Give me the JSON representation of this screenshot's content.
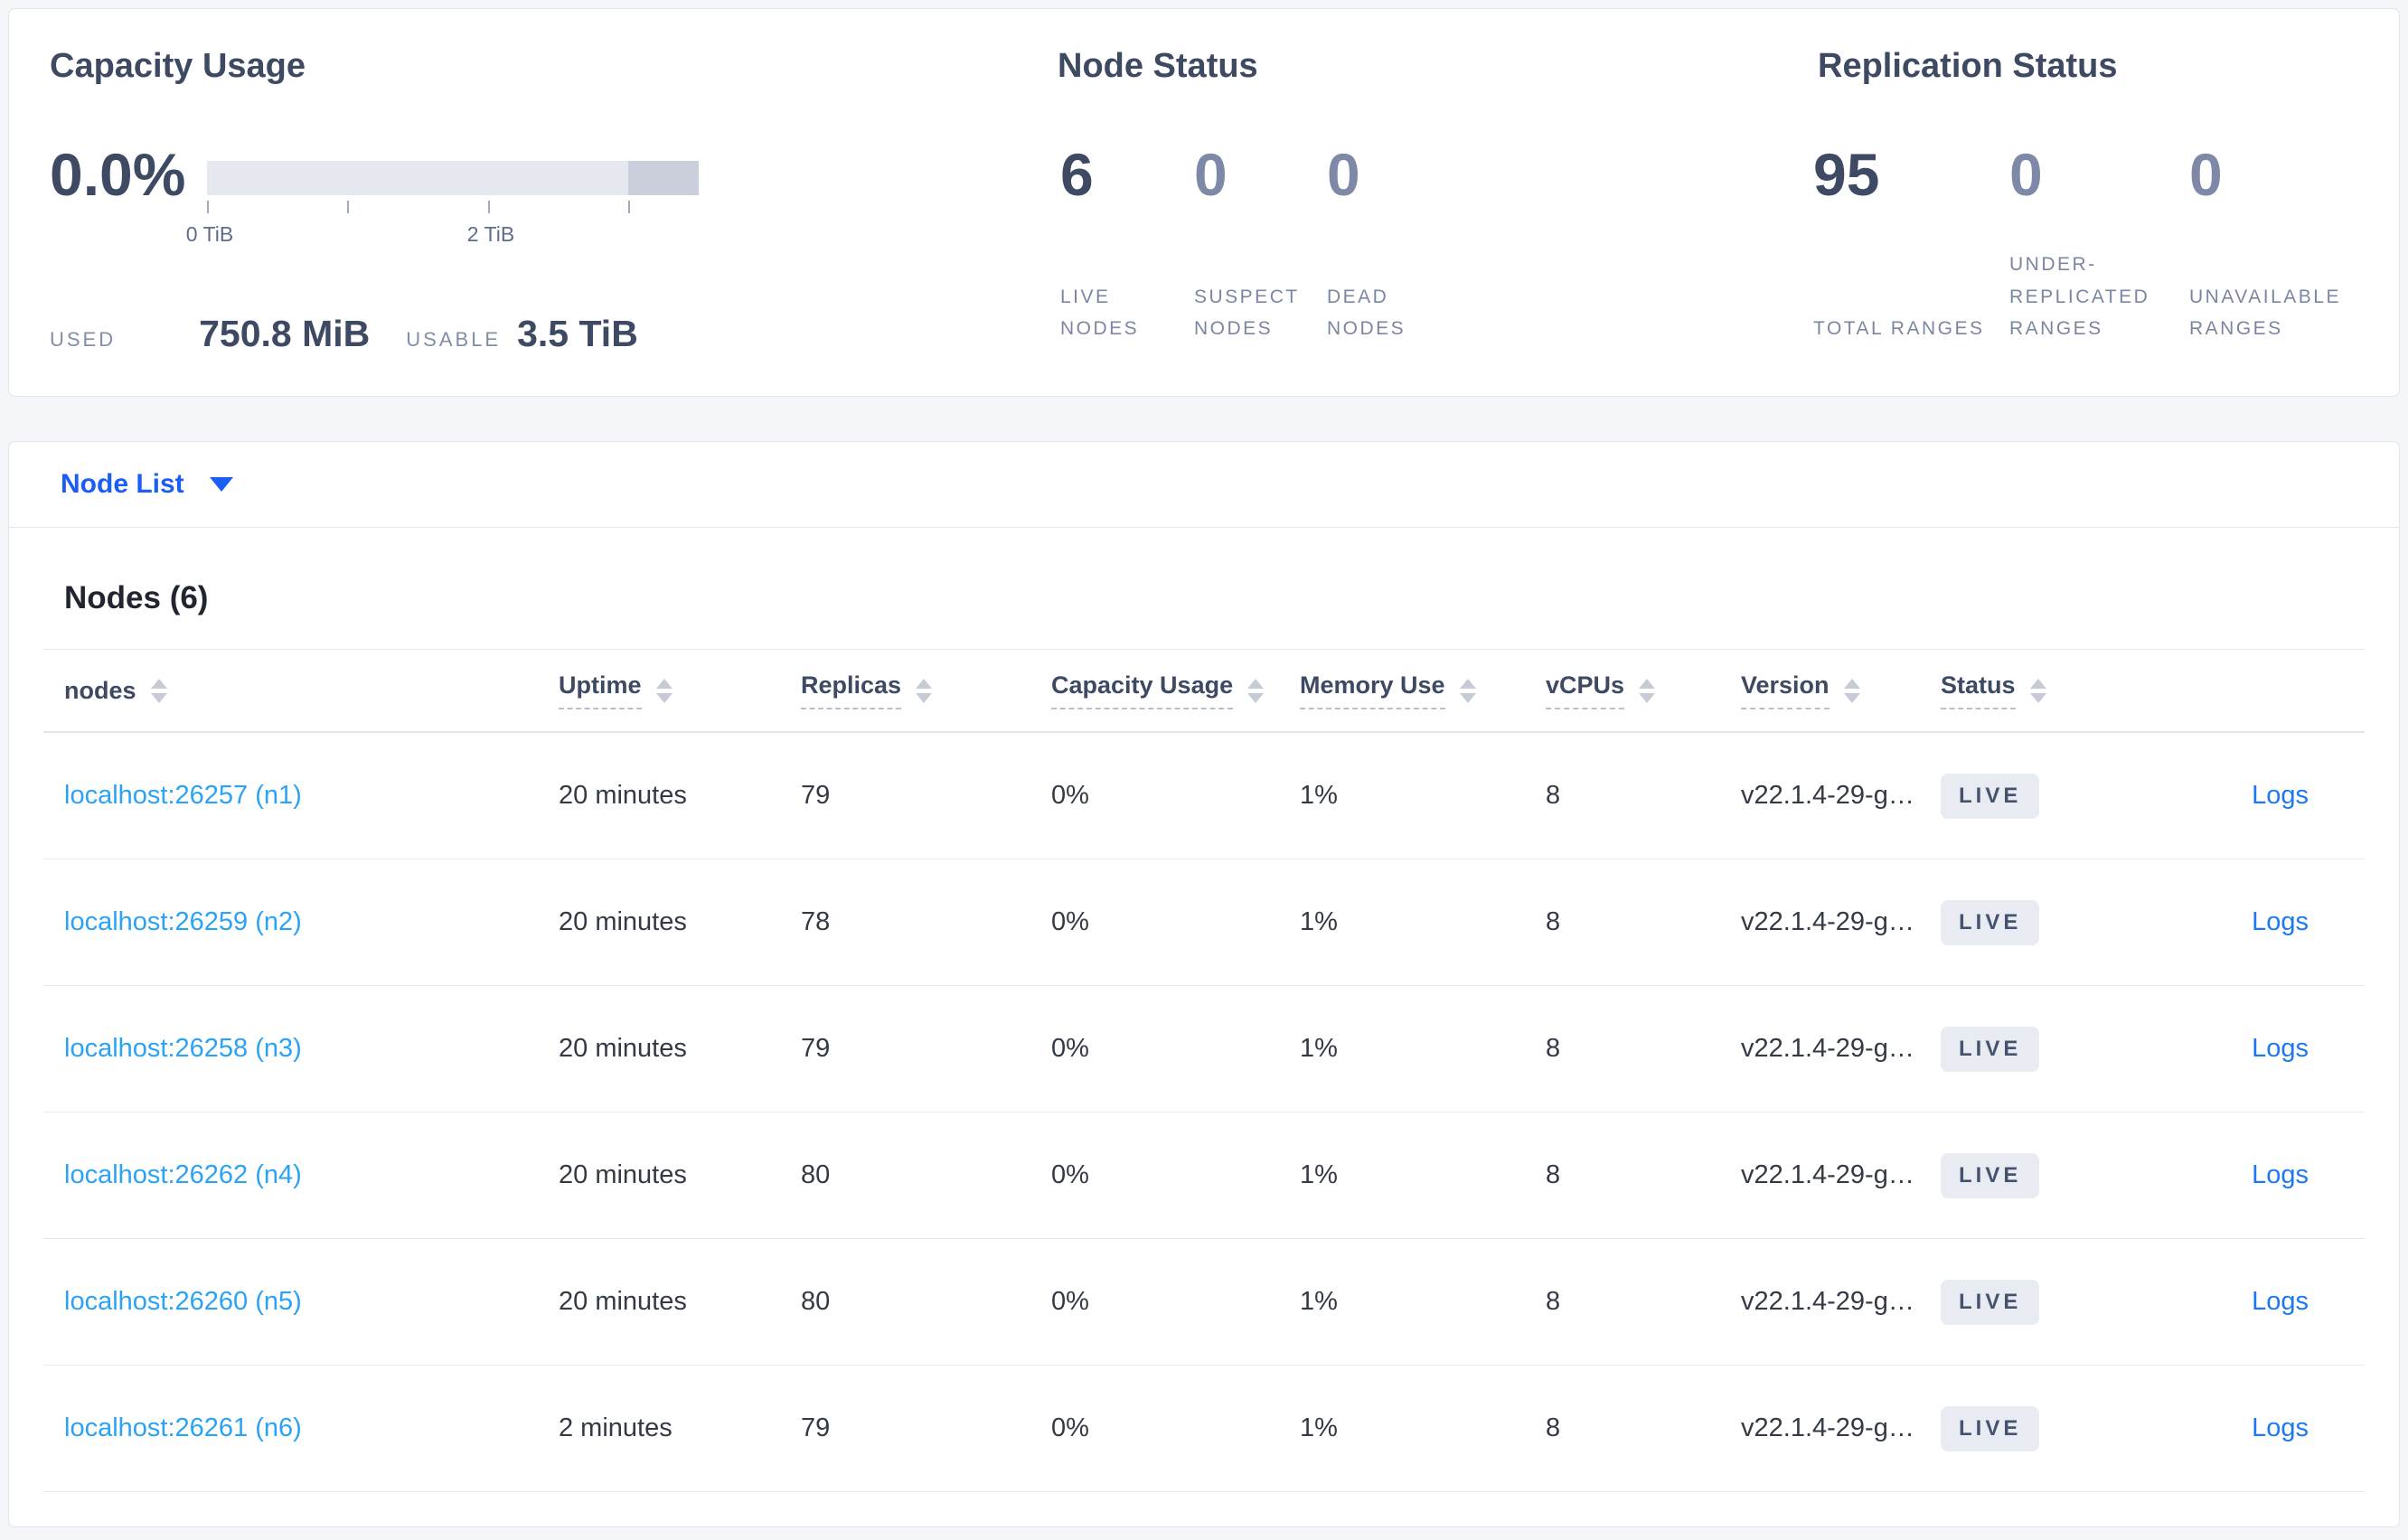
{
  "capacity": {
    "title": "Capacity Usage",
    "percent": "0.0%",
    "tick_label_0": "0 TiB",
    "tick_label_2": "2 TiB",
    "used_label": "USED",
    "used_value": "750.8 MiB",
    "usable_label": "USABLE",
    "usable_value": "3.5 TiB"
  },
  "node_status": {
    "title": "Node Status",
    "stats": [
      {
        "value": "6",
        "label": "LIVE NODES"
      },
      {
        "value": "0",
        "label": "SUSPECT NODES"
      },
      {
        "value": "0",
        "label": "DEAD NODES"
      }
    ]
  },
  "replication": {
    "title": "Replication Status",
    "stats": [
      {
        "value": "95",
        "label": "TOTAL RANGES"
      },
      {
        "value": "0",
        "label": "UNDER-REPLICATED RANGES"
      },
      {
        "value": "0",
        "label": "UNAVAILABLE RANGES"
      }
    ]
  },
  "node_list": {
    "toggle_label": "Node List",
    "heading": "Nodes (6)",
    "columns": [
      {
        "label": "nodes"
      },
      {
        "label": "Uptime"
      },
      {
        "label": "Replicas"
      },
      {
        "label": "Capacity Usage"
      },
      {
        "label": "Memory Use"
      },
      {
        "label": "vCPUs"
      },
      {
        "label": "Version"
      },
      {
        "label": "Status"
      }
    ],
    "rows": [
      {
        "node": "localhost:26257 (n1)",
        "uptime": "20 minutes",
        "replicas": "79",
        "capacity": "0%",
        "memory": "1%",
        "vcpus": "8",
        "version": "v22.1.4-29-g…",
        "status": "LIVE",
        "logs": "Logs"
      },
      {
        "node": "localhost:26259 (n2)",
        "uptime": "20 minutes",
        "replicas": "78",
        "capacity": "0%",
        "memory": "1%",
        "vcpus": "8",
        "version": "v22.1.4-29-g…",
        "status": "LIVE",
        "logs": "Logs"
      },
      {
        "node": "localhost:26258 (n3)",
        "uptime": "20 minutes",
        "replicas": "79",
        "capacity": "0%",
        "memory": "1%",
        "vcpus": "8",
        "version": "v22.1.4-29-g…",
        "status": "LIVE",
        "logs": "Logs"
      },
      {
        "node": "localhost:26262 (n4)",
        "uptime": "20 minutes",
        "replicas": "80",
        "capacity": "0%",
        "memory": "1%",
        "vcpus": "8",
        "version": "v22.1.4-29-g…",
        "status": "LIVE",
        "logs": "Logs"
      },
      {
        "node": "localhost:26260 (n5)",
        "uptime": "20 minutes",
        "replicas": "80",
        "capacity": "0%",
        "memory": "1%",
        "vcpus": "8",
        "version": "v22.1.4-29-g…",
        "status": "LIVE",
        "logs": "Logs"
      },
      {
        "node": "localhost:26261 (n6)",
        "uptime": "2 minutes",
        "replicas": "79",
        "capacity": "0%",
        "memory": "1%",
        "vcpus": "8",
        "version": "v22.1.4-29-g…",
        "status": "LIVE",
        "logs": "Logs"
      }
    ]
  },
  "colors": {
    "accent_blue": "#1a5ef5",
    "link_light_blue": "#2aa2f5",
    "dark_slate": "#3e4a63",
    "badge_bg": "#e8ecf2"
  }
}
